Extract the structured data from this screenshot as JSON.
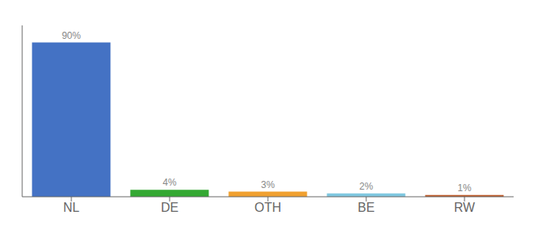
{
  "chart_data": {
    "type": "bar",
    "categories": [
      "NL",
      "DE",
      "OTH",
      "BE",
      "RW"
    ],
    "values": [
      90,
      4,
      3,
      2,
      1
    ],
    "value_labels": [
      "90%",
      "4%",
      "3%",
      "2%",
      "1%"
    ],
    "colors": [
      "#4472c4",
      "#33a832",
      "#f0a030",
      "#80c8e0",
      "#c06030"
    ],
    "ylim": [
      0,
      100
    ],
    "data_labels": true,
    "tick_labels": "x",
    "grid": false
  }
}
